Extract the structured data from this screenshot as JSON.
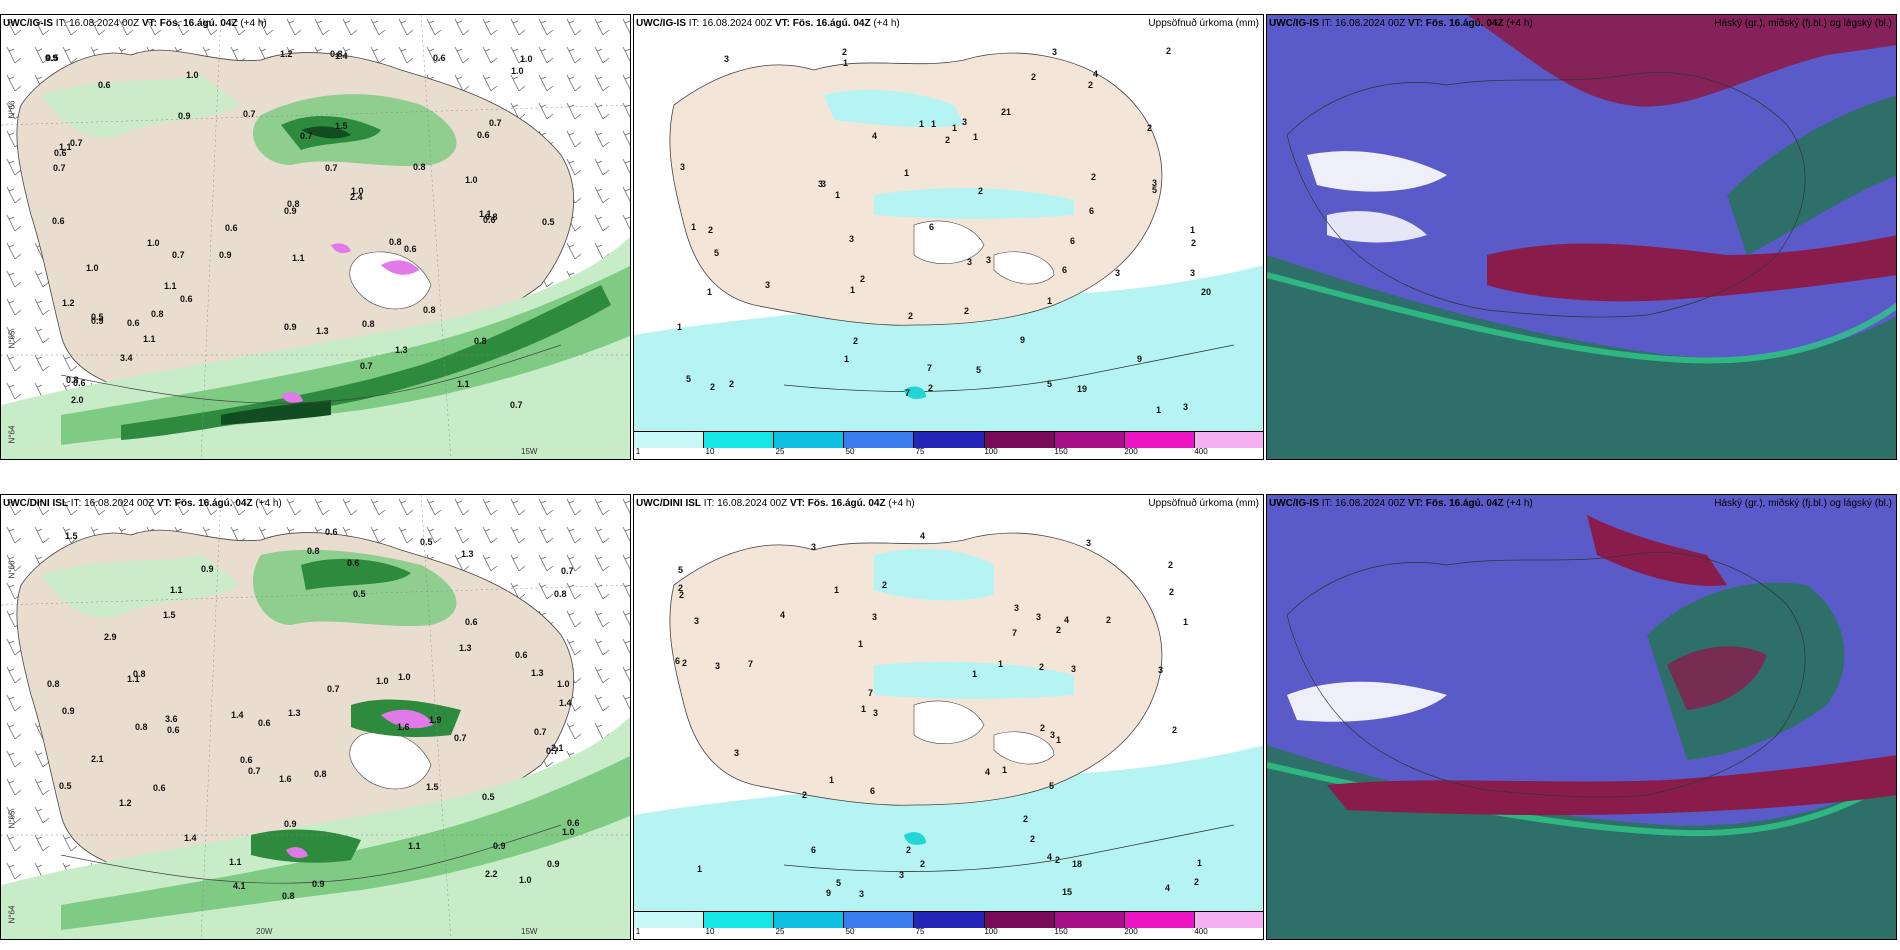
{
  "panels": [
    {
      "model": "UWC/IG-IS",
      "it": "IT: 16.08.2024 00Z",
      "vt_label": "VT:",
      "vt": "Fös. 16.ágú. 04Z",
      "lead": "(+4 h)",
      "right_title": "",
      "type": "windprecip",
      "labels": [
        "0.8",
        "0.5",
        "0.9",
        "2.0",
        "1.0",
        "0.6",
        "0.7",
        "1.2",
        "0.9",
        "1.1",
        "0.8",
        "0.6",
        "1.0",
        "1.5",
        "0.8",
        "0.6",
        "0.5",
        "1.0",
        "0.9",
        "0.7",
        "1.3",
        "0.6",
        "0.9",
        "1.4",
        "0.8",
        "1.1",
        "0.7",
        "1.2",
        "0.5",
        "0.6",
        "0.8",
        "0.6",
        "0.7",
        "0.8",
        "0.6",
        "1.1",
        "0.7",
        "0.8",
        "1.0",
        "1.1",
        "0.9",
        "0.6",
        "1.0",
        "0.6",
        "0.7",
        "0.8",
        "0.8",
        "0.9",
        "0.6",
        "1.3",
        "3.4",
        "1.0",
        "0.7",
        "1.1",
        "2.4",
        "0.8",
        "1.1",
        "1.0",
        "0.7",
        "0.6",
        "0.7"
      ],
      "axis_labels": [
        "N°66",
        "N°65",
        "N°64",
        "15W"
      ]
    },
    {
      "model": "UWC/IG-IS",
      "it": "IT: 16.08.2024 00Z",
      "vt_label": "VT:",
      "vt": "Fös. 16.ágú. 04Z",
      "lead": "(+4 h)",
      "right_title": "Uppsöfnuð úrkoma (mm)",
      "type": "accum",
      "labels": [
        "1",
        "3",
        "2",
        "1",
        "1",
        "2",
        "2",
        "1",
        "1",
        "2",
        "3",
        "1",
        "2",
        "1",
        "2",
        "3",
        "2",
        "1",
        "2",
        "1",
        "1",
        "2",
        "1",
        "9",
        "2",
        "5",
        "6",
        "7",
        "4",
        "3",
        "6",
        "2",
        "2",
        "2",
        "3",
        "1",
        "3",
        "2",
        "2",
        "3",
        "3",
        "2",
        "3",
        "4",
        "5",
        "3",
        "9",
        "7",
        "6",
        "6",
        "3",
        "5",
        "5",
        "5",
        "19",
        "20",
        "21",
        "3",
        "3",
        "2",
        "3",
        "1",
        "1",
        "1"
      ],
      "colorbar": [
        "1",
        "10",
        "25",
        "50",
        "75",
        "100",
        "150",
        "200",
        "400"
      ]
    },
    {
      "model": "UWC/IG-IS",
      "it": "IT: 16.08.2024 00Z",
      "vt_label": "VT:",
      "vt": "Fös. 16.ágú. 04Z",
      "lead": "(+4 h)",
      "right_title": "Háský (gr.), miðský (fj.bl.) og lágský (bl.)",
      "type": "clouds"
    },
    {
      "model": "UWC/DINI ISL",
      "it": "IT: 16.08.2024 00Z",
      "vt_label": "VT:",
      "vt": "Fös. 16.ágú. 04Z",
      "lead": "(+4 h)",
      "right_title": "",
      "type": "windprecip",
      "labels": [
        "1.4",
        "2.1",
        "1.3",
        "0.7",
        "1.0",
        "0.8",
        "0.9",
        "0.6",
        "0.5",
        "1.5",
        "0.9",
        "1.6",
        "0.7",
        "0.8",
        "1.5",
        "1.2",
        "1.1",
        "0.6",
        "0.7",
        "1.3",
        "1.0",
        "0.6",
        "0.5",
        "1.5",
        "0.8",
        "1.3",
        "0.6",
        "2.1",
        "0.9",
        "1.1",
        "0.7",
        "0.8",
        "0.5",
        "0.6",
        "0.7",
        "0.9",
        "0.6",
        "0.8",
        "0.9",
        "1.0",
        "0.9",
        "0.6",
        "1.0",
        "0.8",
        "0.6",
        "0.7",
        "2.9",
        "1.3",
        "4.1",
        "1.6",
        "1.0",
        "1.1",
        "1.4",
        "1.1",
        "1.4",
        "0.5",
        "0.6",
        "3.6",
        "1.9",
        "2.2",
        "0.8"
      ],
      "axis_labels": [
        "N°66",
        "N°65",
        "N°64",
        "20W",
        "15W"
      ]
    },
    {
      "model": "UWC/DINI ISL",
      "it": "IT: 16.08.2024 00Z",
      "vt_label": "VT:",
      "vt": "Fös. 16.ágú. 04Z",
      "lead": "(+4 h)",
      "right_title": "Uppsöfnuð úrkoma (mm)",
      "type": "accum",
      "labels": [
        "2",
        "3",
        "2",
        "2",
        "1",
        "4",
        "2",
        "3",
        "1",
        "2",
        "1",
        "3",
        "1",
        "2",
        "1",
        "3",
        "2",
        "1",
        "2",
        "7",
        "2",
        "1",
        "1",
        "1",
        "3",
        "3",
        "2",
        "1",
        "7",
        "5",
        "3",
        "2",
        "2",
        "5",
        "4",
        "1",
        "2",
        "2",
        "2",
        "2",
        "2",
        "2",
        "3",
        "3",
        "3",
        "18",
        "9",
        "7",
        "5",
        "15",
        "3",
        "4",
        "6",
        "6",
        "4",
        "4",
        "3",
        "3",
        "4",
        "3",
        "6"
      ],
      "colorbar": [
        "1",
        "10",
        "25",
        "50",
        "75",
        "100",
        "150",
        "200",
        "400"
      ]
    },
    {
      "model": "UWC/IG-IS",
      "it": "IT: 16.08.2024 00Z",
      "vt_label": "VT:",
      "vt": "Fös. 16.ágú. 04Z",
      "lead": "(+4 h)",
      "right_title": "Háský (gr.), miðský (fj.bl.) og lágský (bl.)",
      "type": "clouds"
    }
  ],
  "palette": {
    "land": "#f3e6d8",
    "land_panel1": "#e9ddd0",
    "precip_light": "#c8ecc8",
    "precip_mid": "#7fcb84",
    "precip_dark": "#2e8b3e",
    "precip_darkest": "#124d22",
    "precip_purple": "#e07ae8",
    "accum_light": "#b6f4f4",
    "accum_cyan": "#22d6d6",
    "cloud_blue": "#5a5bc9",
    "cloud_red": "#8a1c4c",
    "cloud_teal": "#2e6f6a",
    "cloud_green": "#2ec986"
  },
  "colorbar_colors": [
    "#c8f7f7",
    "#16e6e6",
    "#10c0e0",
    "#3a7df0",
    "#2424b8",
    "#7a0a5a",
    "#a8108a",
    "#ee16c4",
    "#f4b0f0"
  ]
}
